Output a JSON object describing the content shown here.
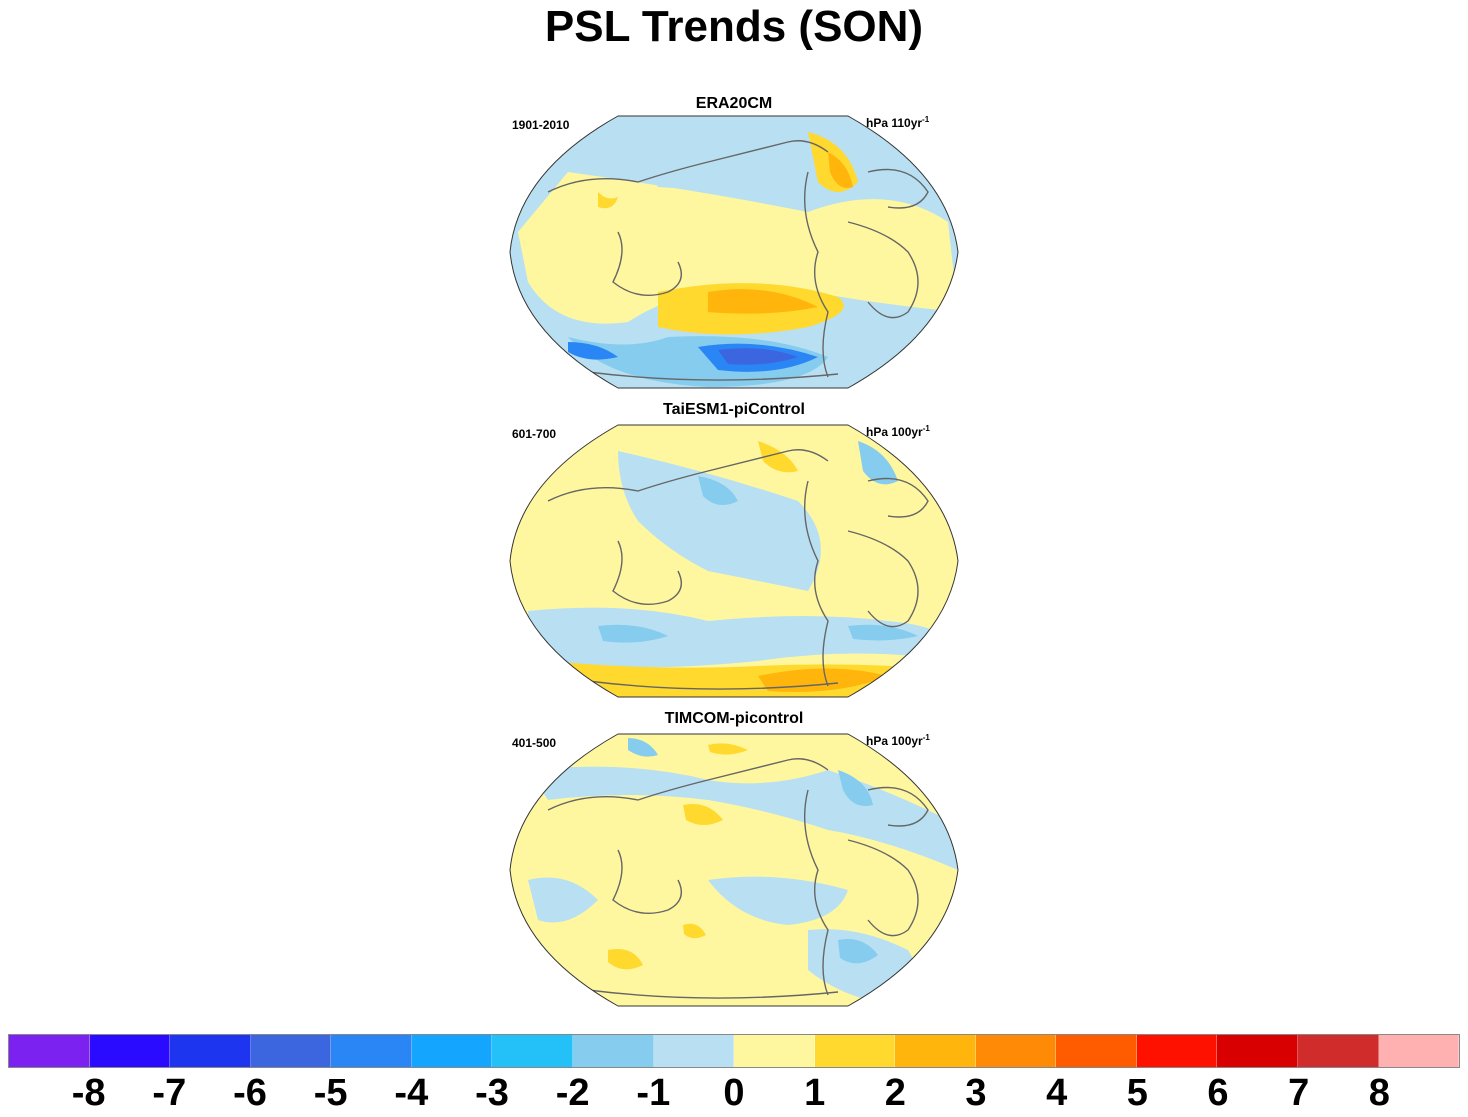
{
  "title": "PSL Trends (SON)",
  "panels": [
    {
      "title": "ERA20CM",
      "period": "1901-2010",
      "units_main": "hPa 110yr",
      "units_sup": "-1"
    },
    {
      "title": "TaiESM1-piControl",
      "period": "601-700",
      "units_main": "hPa 100yr",
      "units_sup": "-1"
    },
    {
      "title": "TIMCOM-picontrol",
      "period": "401-500",
      "units_main": "hPa 100yr",
      "units_sup": "-1"
    }
  ],
  "colorbar": {
    "colors": [
      "#7b22f0",
      "#2a0bff",
      "#1e35f0",
      "#3b66e0",
      "#2b86f5",
      "#14a6ff",
      "#24c1f8",
      "#86ccee",
      "#b8e0f2",
      "#fff7a0",
      "#ffd92e",
      "#ffb50c",
      "#ff8a05",
      "#ff5c00",
      "#ff1100",
      "#d80000",
      "#d12c2c",
      "#ffb0b0"
    ],
    "labels": [
      "-8",
      "-7",
      "-6",
      "-5",
      "-4",
      "-3",
      "-2",
      "-1",
      "0",
      "1",
      "2",
      "3",
      "4",
      "5",
      "6",
      "7",
      "8"
    ]
  }
}
